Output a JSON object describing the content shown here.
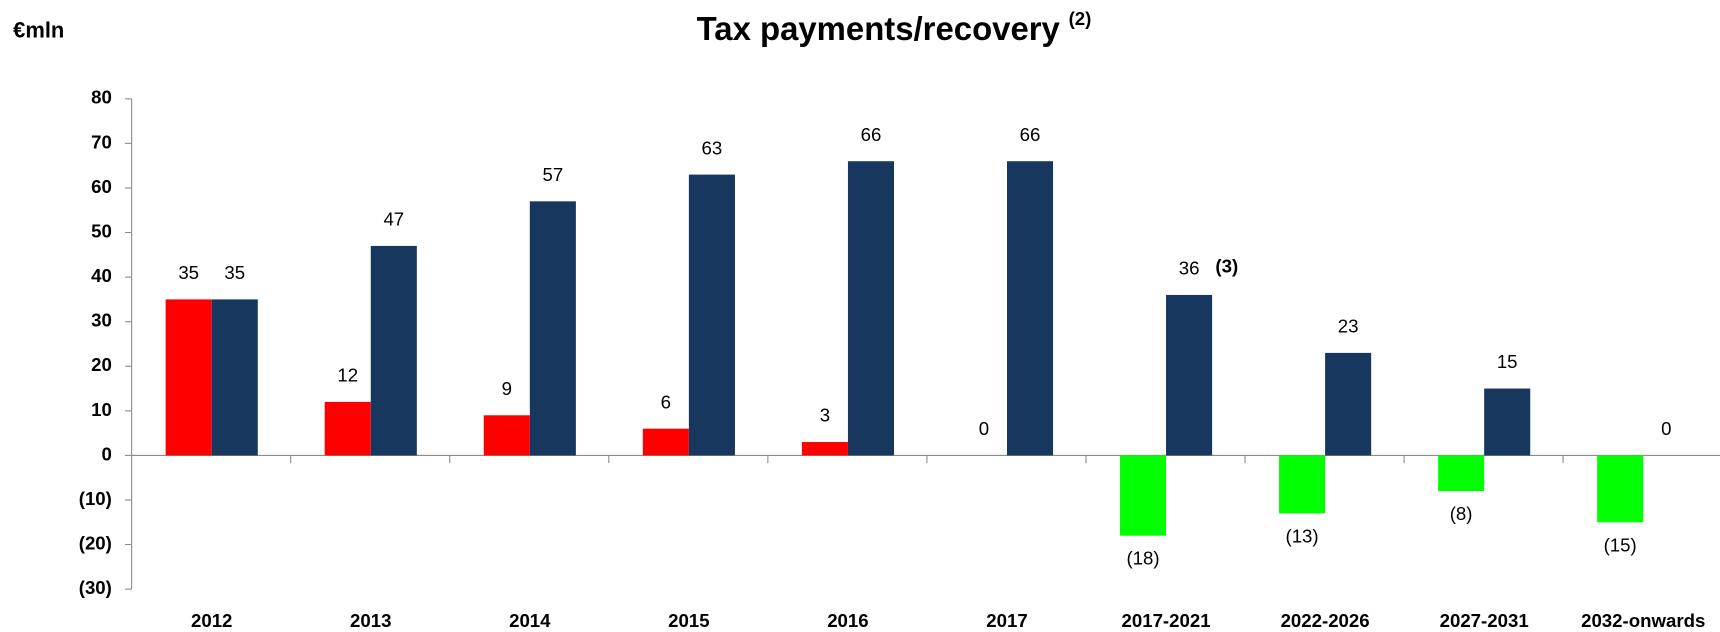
{
  "chart_data": {
    "type": "bar",
    "title": "Tax payments/recovery",
    "title_superscript": "(2)",
    "y_label": "€mln",
    "categories": [
      "2012",
      "2013",
      "2014",
      "2015",
      "2016",
      "2017",
      "2017-2021",
      "2022-2026",
      "2027-2031",
      "2032-onwards"
    ],
    "series": [
      {
        "values": [
          35,
          12,
          9,
          6,
          3,
          0,
          -18,
          -13,
          -8,
          -15
        ],
        "value_labels": [
          "35",
          "12",
          "9",
          "6",
          "3",
          "0",
          "(18)",
          "(13)",
          "(8)",
          "(15)"
        ],
        "colors": [
          "#ff0000",
          "#ff0000",
          "#ff0000",
          "#ff0000",
          "#ff0000",
          "#ff0000",
          "#00ff00",
          "#00ff00",
          "#00ff00",
          "#00ff00"
        ]
      },
      {
        "values": [
          35,
          47,
          57,
          63,
          66,
          66,
          36,
          23,
          15,
          0
        ],
        "color": "#17375e"
      }
    ],
    "annotations": [
      {
        "text": "(3)",
        "series": 1,
        "index": 6
      }
    ],
    "ylim": [
      -30,
      80
    ],
    "yticks": [
      80,
      70,
      60,
      50,
      40,
      30,
      20,
      10,
      0,
      {
        "value": -10,
        "label": "(10)"
      },
      {
        "value": -20,
        "label": "(20)"
      },
      {
        "value": -30,
        "label": "(30)"
      }
    ],
    "grid": false
  }
}
